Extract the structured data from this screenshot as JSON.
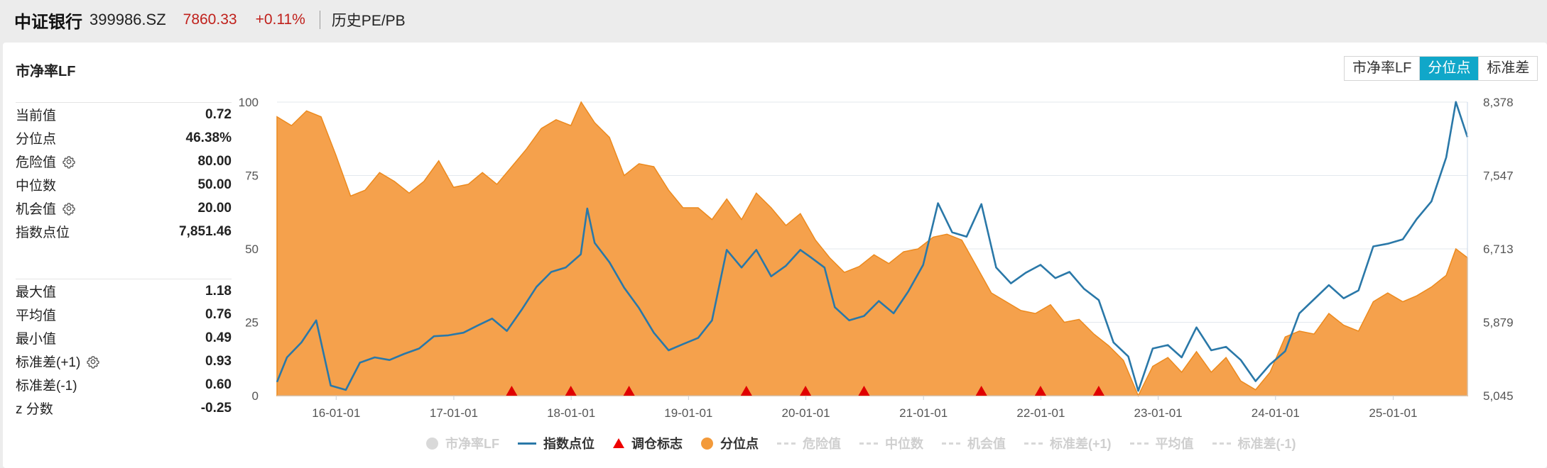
{
  "header": {
    "name": "中证银行",
    "code": "399986.SZ",
    "price": "7860.33",
    "change": "+0.11%",
    "tab": "历史PE/PB"
  },
  "panel": {
    "title": "市净率LF",
    "toggle": [
      {
        "label": "市净率LF",
        "active": false
      },
      {
        "label": "分位点",
        "active": true
      },
      {
        "label": "标准差",
        "active": false
      }
    ]
  },
  "stats": {
    "group1": [
      {
        "label": "当前值",
        "value": "0.72",
        "gear": false
      },
      {
        "label": "分位点",
        "value": "46.38%",
        "gear": false
      },
      {
        "label": "危险值",
        "value": "80.00",
        "gear": true
      },
      {
        "label": "中位数",
        "value": "50.00",
        "gear": false
      },
      {
        "label": "机会值",
        "value": "20.00",
        "gear": true
      },
      {
        "label": "指数点位",
        "value": "7,851.46",
        "gear": false
      }
    ],
    "group2": [
      {
        "label": "最大值",
        "value": "1.18",
        "gear": false
      },
      {
        "label": "平均值",
        "value": "0.76",
        "gear": false
      },
      {
        "label": "最小值",
        "value": "0.49",
        "gear": false
      },
      {
        "label": "标准差(+1)",
        "value": "0.93",
        "gear": true
      },
      {
        "label": "标准差(-1)",
        "value": "0.60",
        "gear": false
      },
      {
        "label": "z 分数",
        "value": "-0.25",
        "gear": false
      }
    ]
  },
  "chart_data": {
    "type": "area",
    "x_range": [
      "2015-07-01",
      "2025-08-20"
    ],
    "x_ticks": [
      "16-01-01",
      "17-01-01",
      "18-01-01",
      "19-01-01",
      "20-01-01",
      "21-01-01",
      "22-01-01",
      "23-01-01",
      "24-01-01",
      "25-01-01"
    ],
    "y_left_ticks": [
      "0",
      "25",
      "50",
      "75",
      "100"
    ],
    "y_left_range": [
      0,
      100
    ],
    "y_right_ticks": [
      "5,045",
      "5,879",
      "6,713",
      "7,547",
      "8,378"
    ],
    "y_right_range": [
      5045,
      8378
    ],
    "grid": true,
    "series": [
      {
        "name": "分位点",
        "axis": "left",
        "color": "#f4a04d",
        "points": [
          [
            "2015-07-01",
            95
          ],
          [
            "2015-08-15",
            92
          ],
          [
            "2015-10-01",
            97
          ],
          [
            "2015-11-15",
            95
          ],
          [
            "2015-12-31",
            82
          ],
          [
            "2016-02-15",
            68
          ],
          [
            "2016-03-31",
            70
          ],
          [
            "2016-05-15",
            76
          ],
          [
            "2016-06-30",
            73
          ],
          [
            "2016-08-15",
            69
          ],
          [
            "2016-09-30",
            73
          ],
          [
            "2016-11-15",
            80
          ],
          [
            "2016-12-31",
            71
          ],
          [
            "2017-02-15",
            72
          ],
          [
            "2017-03-31",
            76
          ],
          [
            "2017-05-15",
            72
          ],
          [
            "2017-06-30",
            78
          ],
          [
            "2017-08-15",
            84
          ],
          [
            "2017-09-30",
            91
          ],
          [
            "2017-11-15",
            94
          ],
          [
            "2017-12-31",
            92
          ],
          [
            "2018-02-01",
            100
          ],
          [
            "2018-03-15",
            93
          ],
          [
            "2018-04-30",
            88
          ],
          [
            "2018-06-15",
            75
          ],
          [
            "2018-07-31",
            79
          ],
          [
            "2018-09-15",
            78
          ],
          [
            "2018-10-31",
            70
          ],
          [
            "2018-12-15",
            64
          ],
          [
            "2019-01-31",
            64
          ],
          [
            "2019-03-15",
            60
          ],
          [
            "2019-04-30",
            67
          ],
          [
            "2019-06-15",
            60
          ],
          [
            "2019-07-31",
            69
          ],
          [
            "2019-09-15",
            64
          ],
          [
            "2019-10-31",
            58
          ],
          [
            "2019-12-15",
            62
          ],
          [
            "2020-01-31",
            53
          ],
          [
            "2020-03-15",
            47
          ],
          [
            "2020-04-30",
            42
          ],
          [
            "2020-06-15",
            44
          ],
          [
            "2020-07-31",
            48
          ],
          [
            "2020-09-15",
            45
          ],
          [
            "2020-10-31",
            49
          ],
          [
            "2020-12-15",
            50
          ],
          [
            "2021-01-31",
            54
          ],
          [
            "2021-03-15",
            55
          ],
          [
            "2021-04-30",
            53
          ],
          [
            "2021-06-15",
            44
          ],
          [
            "2021-07-31",
            35
          ],
          [
            "2021-09-15",
            32
          ],
          [
            "2021-10-31",
            29
          ],
          [
            "2021-12-15",
            28
          ],
          [
            "2022-01-31",
            31
          ],
          [
            "2022-03-15",
            25
          ],
          [
            "2022-04-30",
            26
          ],
          [
            "2022-06-15",
            21
          ],
          [
            "2022-07-31",
            17
          ],
          [
            "2022-09-15",
            12
          ],
          [
            "2022-10-31",
            0
          ],
          [
            "2022-12-15",
            10
          ],
          [
            "2023-01-31",
            13
          ],
          [
            "2023-03-15",
            8
          ],
          [
            "2023-04-30",
            15
          ],
          [
            "2023-06-15",
            8
          ],
          [
            "2023-07-31",
            13
          ],
          [
            "2023-09-15",
            5
          ],
          [
            "2023-10-31",
            2
          ],
          [
            "2023-12-15",
            8
          ],
          [
            "2024-01-31",
            20
          ],
          [
            "2024-03-15",
            22
          ],
          [
            "2024-04-30",
            21
          ],
          [
            "2024-06-15",
            28
          ],
          [
            "2024-07-31",
            24
          ],
          [
            "2024-09-15",
            22
          ],
          [
            "2024-10-31",
            32
          ],
          [
            "2024-12-15",
            35
          ],
          [
            "2025-01-31",
            32
          ],
          [
            "2025-03-15",
            34
          ],
          [
            "2025-04-30",
            37
          ],
          [
            "2025-06-15",
            41
          ],
          [
            "2025-07-15",
            50
          ],
          [
            "2025-08-20",
            47
          ]
        ]
      },
      {
        "name": "指数点位",
        "axis": "right",
        "color": "#2a78a8",
        "points": [
          [
            "2015-07-01",
            5200
          ],
          [
            "2015-08-01",
            5480
          ],
          [
            "2015-09-15",
            5650
          ],
          [
            "2015-10-31",
            5900
          ],
          [
            "2015-12-15",
            5160
          ],
          [
            "2016-01-31",
            5110
          ],
          [
            "2016-03-15",
            5420
          ],
          [
            "2016-04-30",
            5480
          ],
          [
            "2016-06-15",
            5450
          ],
          [
            "2016-07-31",
            5520
          ],
          [
            "2016-09-15",
            5580
          ],
          [
            "2016-10-31",
            5720
          ],
          [
            "2016-12-15",
            5730
          ],
          [
            "2017-01-31",
            5760
          ],
          [
            "2017-03-15",
            5840
          ],
          [
            "2017-04-30",
            5920
          ],
          [
            "2017-06-15",
            5780
          ],
          [
            "2017-07-31",
            6020
          ],
          [
            "2017-09-15",
            6280
          ],
          [
            "2017-10-31",
            6450
          ],
          [
            "2017-12-15",
            6500
          ],
          [
            "2018-01-31",
            6650
          ],
          [
            "2018-02-20",
            7170
          ],
          [
            "2018-03-15",
            6780
          ],
          [
            "2018-04-30",
            6560
          ],
          [
            "2018-06-15",
            6270
          ],
          [
            "2018-07-31",
            6040
          ],
          [
            "2018-09-15",
            5760
          ],
          [
            "2018-10-31",
            5560
          ],
          [
            "2018-12-15",
            5630
          ],
          [
            "2019-01-31",
            5700
          ],
          [
            "2019-03-15",
            5900
          ],
          [
            "2019-04-30",
            6700
          ],
          [
            "2019-06-15",
            6500
          ],
          [
            "2019-07-31",
            6700
          ],
          [
            "2019-09-15",
            6400
          ],
          [
            "2019-10-31",
            6520
          ],
          [
            "2019-12-15",
            6700
          ],
          [
            "2020-01-15",
            6620
          ],
          [
            "2020-02-28",
            6500
          ],
          [
            "2020-03-31",
            6050
          ],
          [
            "2020-05-15",
            5900
          ],
          [
            "2020-06-30",
            5950
          ],
          [
            "2020-08-15",
            6120
          ],
          [
            "2020-09-30",
            5980
          ],
          [
            "2020-11-15",
            6230
          ],
          [
            "2020-12-31",
            6530
          ],
          [
            "2021-02-15",
            7230
          ],
          [
            "2021-03-31",
            6900
          ],
          [
            "2021-05-15",
            6850
          ],
          [
            "2021-06-30",
            7220
          ],
          [
            "2021-08-15",
            6500
          ],
          [
            "2021-09-30",
            6320
          ],
          [
            "2021-11-15",
            6440
          ],
          [
            "2021-12-31",
            6530
          ],
          [
            "2022-02-15",
            6380
          ],
          [
            "2022-03-31",
            6450
          ],
          [
            "2022-05-15",
            6260
          ],
          [
            "2022-06-30",
            6130
          ],
          [
            "2022-08-15",
            5650
          ],
          [
            "2022-09-30",
            5490
          ],
          [
            "2022-10-31",
            5100
          ],
          [
            "2022-12-15",
            5580
          ],
          [
            "2023-01-31",
            5620
          ],
          [
            "2023-03-15",
            5480
          ],
          [
            "2023-04-30",
            5820
          ],
          [
            "2023-06-15",
            5560
          ],
          [
            "2023-07-31",
            5600
          ],
          [
            "2023-09-15",
            5450
          ],
          [
            "2023-10-31",
            5210
          ],
          [
            "2023-12-15",
            5400
          ],
          [
            "2024-01-31",
            5550
          ],
          [
            "2024-03-15",
            5980
          ],
          [
            "2024-04-30",
            6140
          ],
          [
            "2024-06-15",
            6300
          ],
          [
            "2024-07-31",
            6150
          ],
          [
            "2024-09-15",
            6240
          ],
          [
            "2024-10-31",
            6740
          ],
          [
            "2024-12-15",
            6770
          ],
          [
            "2025-01-31",
            6820
          ],
          [
            "2025-03-15",
            7050
          ],
          [
            "2025-04-30",
            7250
          ],
          [
            "2025-06-15",
            7750
          ],
          [
            "2025-07-15",
            8380
          ],
          [
            "2025-08-20",
            7980
          ]
        ]
      }
    ],
    "markers": {
      "name": "调仓标志",
      "color": "#e00000",
      "dates": [
        "2017-06-30",
        "2017-12-31",
        "2018-06-30",
        "2019-06-30",
        "2019-12-31",
        "2020-06-30",
        "2021-06-30",
        "2021-12-31",
        "2022-06-30"
      ]
    },
    "legend": {
      "placement": "bottom",
      "items": [
        {
          "label": "市净率LF",
          "symbol": "dot",
          "color": "#d9d9d9",
          "active": false
        },
        {
          "label": "指数点位",
          "symbol": "line",
          "color": "#2a78a8",
          "active": true
        },
        {
          "label": "调仓标志",
          "symbol": "triangle",
          "color": "#e00000",
          "active": true
        },
        {
          "label": "分位点",
          "symbol": "dot",
          "color": "#f39a3a",
          "active": true
        },
        {
          "label": "危险值",
          "symbol": "dash",
          "color": "#d8d8d8",
          "active": false
        },
        {
          "label": "中位数",
          "symbol": "dash",
          "color": "#d8d8d8",
          "active": false
        },
        {
          "label": "机会值",
          "symbol": "dash",
          "color": "#d8d8d8",
          "active": false
        },
        {
          "label": "标准差(+1)",
          "symbol": "dash",
          "color": "#d8d8d8",
          "active": false
        },
        {
          "label": "平均值",
          "symbol": "dash",
          "color": "#d8d8d8",
          "active": false
        },
        {
          "label": "标准差(-1)",
          "symbol": "dash",
          "color": "#d8d8d8",
          "active": false
        }
      ]
    }
  }
}
